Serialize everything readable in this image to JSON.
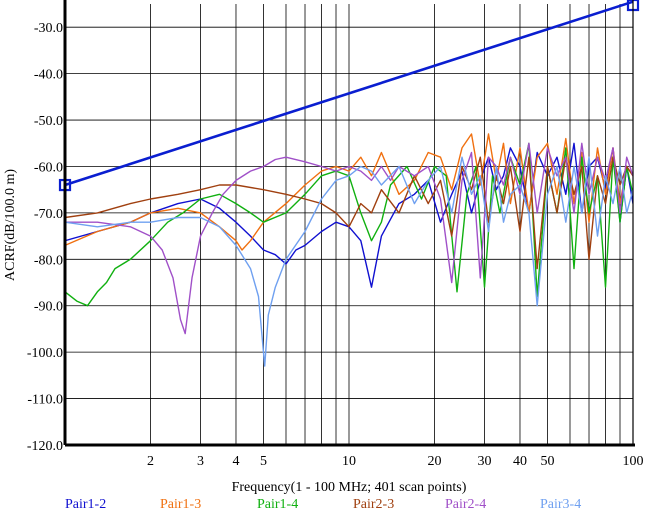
{
  "chart_data": {
    "type": "line",
    "title": "",
    "xlabel": "Frequency(1 - 100 MHz; 401 scan points)",
    "ylabel": "ACRF(dB/100.0 m)",
    "xscale": "log",
    "xlim": [
      1,
      100
    ],
    "ylim": [
      -120,
      -25
    ],
    "grid": true,
    "xticks": [
      2,
      3,
      4,
      5,
      10,
      20,
      30,
      40,
      50,
      100
    ],
    "yticks": [
      -30,
      -40,
      -50,
      -60,
      -70,
      -80,
      -90,
      -100,
      -110,
      -120
    ],
    "xtick_labels": [
      "2",
      "3",
      "4",
      "5",
      "10",
      "20",
      "30",
      "40",
      "50",
      "100"
    ],
    "ytick_labels": [
      "-30.0",
      "-40.0",
      "-50.0",
      "-60.0",
      "-70.0",
      "-80.0",
      "-90.0",
      "-100.0",
      "-110.0",
      "-120.0"
    ],
    "legend_position": "bottom",
    "limit_line": {
      "color": "#0a1ed0",
      "x": [
        1,
        100
      ],
      "y": [
        -64,
        -24.5
      ]
    },
    "series": [
      {
        "name": "Pair1-2",
        "color": "#1010d0",
        "x": [
          1,
          1.3,
          1.7,
          2,
          2.5,
          3,
          3.5,
          4,
          4.5,
          5,
          5.5,
          6,
          6.5,
          7,
          8,
          9,
          10,
          11,
          12,
          13,
          15,
          17,
          19,
          21,
          23,
          25,
          27,
          29,
          31,
          33,
          35,
          37,
          40,
          43,
          46,
          50,
          54,
          58,
          62,
          66,
          70,
          75,
          80,
          85,
          90,
          95,
          100
        ],
        "y": [
          -76,
          -74,
          -72,
          -70,
          -68,
          -67,
          -69,
          -72,
          -75,
          -78,
          -79,
          -81,
          -78,
          -77,
          -74,
          -72,
          -73,
          -76,
          -86,
          -75,
          -68,
          -66,
          -63,
          -72,
          -66,
          -61,
          -70,
          -63,
          -58,
          -65,
          -62,
          -56,
          -60,
          -70,
          -57,
          -62,
          -58,
          -66,
          -55,
          -70,
          -60,
          -58,
          -65,
          -56,
          -72,
          -60,
          -68
        ]
      },
      {
        "name": "Pair1-3",
        "color": "#f07010",
        "x": [
          1,
          1.3,
          1.7,
          2,
          2.5,
          3,
          3.5,
          4,
          4.2,
          4.5,
          5,
          6,
          7,
          8,
          9,
          10,
          11,
          12,
          13,
          15,
          17,
          19,
          21,
          23,
          25,
          27,
          29,
          31,
          33,
          35,
          37,
          40,
          43,
          46,
          50,
          54,
          58,
          62,
          66,
          70,
          75,
          80,
          85,
          90,
          95,
          100
        ],
        "y": [
          -77,
          -74,
          -72,
          -70,
          -69,
          -70,
          -73,
          -76,
          -78,
          -76,
          -72,
          -68,
          -64,
          -61,
          -60,
          -61,
          -58,
          -62,
          -57,
          -66,
          -63,
          -57,
          -58,
          -65,
          -56,
          -53,
          -64,
          -53,
          -63,
          -55,
          -68,
          -56,
          -70,
          -58,
          -55,
          -66,
          -54,
          -68,
          -57,
          -72,
          -56,
          -66,
          -56,
          -68,
          -60,
          -62
        ]
      },
      {
        "name": "Pair1-4",
        "color": "#10b010",
        "x": [
          1,
          1.1,
          1.2,
          1.3,
          1.4,
          1.5,
          1.7,
          2,
          2.3,
          2.6,
          3,
          3.5,
          4,
          4.5,
          5,
          6,
          7,
          8,
          9,
          10,
          11,
          12,
          13,
          14,
          16,
          18,
          20,
          22,
          24,
          26,
          28,
          30,
          32,
          34,
          37,
          40,
          43,
          46,
          50,
          54,
          58,
          62,
          66,
          70,
          75,
          80,
          85,
          90,
          95,
          100
        ],
        "y": [
          -87,
          -89,
          -90,
          -87,
          -85,
          -82,
          -80,
          -76,
          -72,
          -70,
          -67,
          -66,
          -68,
          -70,
          -72,
          -70,
          -66,
          -62,
          -61,
          -62,
          -70,
          -76,
          -72,
          -64,
          -60,
          -67,
          -60,
          -62,
          -87,
          -66,
          -60,
          -86,
          -62,
          -70,
          -58,
          -64,
          -55,
          -88,
          -60,
          -70,
          -56,
          -82,
          -58,
          -70,
          -62,
          -86,
          -58,
          -72,
          -60,
          -66
        ]
      },
      {
        "name": "Pair2-3",
        "color": "#a04010",
        "x": [
          1,
          1.3,
          1.7,
          2,
          2.5,
          3,
          3.5,
          4,
          5,
          6,
          7,
          8,
          9,
          10,
          11,
          12,
          13,
          15,
          17,
          19,
          21,
          23,
          25,
          27,
          29,
          31,
          33,
          35,
          37,
          40,
          43,
          46,
          50,
          54,
          58,
          62,
          66,
          70,
          75,
          80,
          85,
          90,
          95,
          100
        ],
        "y": [
          -71,
          -70,
          -68,
          -67,
          -66,
          -65,
          -64,
          -64,
          -65,
          -66,
          -67,
          -68,
          -70,
          -73,
          -68,
          -70,
          -65,
          -70,
          -62,
          -68,
          -63,
          -75,
          -60,
          -65,
          -58,
          -72,
          -62,
          -68,
          -60,
          -74,
          -58,
          -82,
          -60,
          -70,
          -58,
          -66,
          -60,
          -80,
          -62,
          -68,
          -58,
          -64,
          -60,
          -62
        ]
      },
      {
        "name": "Pair2-4",
        "color": "#a050c8",
        "x": [
          1,
          1.3,
          1.7,
          2,
          2.2,
          2.4,
          2.55,
          2.65,
          2.8,
          3,
          3.3,
          3.6,
          4,
          4.5,
          5,
          5.5,
          6,
          7,
          8,
          9,
          10,
          11,
          12,
          13,
          14,
          15,
          17,
          19,
          21,
          23,
          25,
          27,
          29,
          31,
          33,
          35,
          37,
          40,
          43,
          46,
          50,
          54,
          58,
          62,
          66,
          70,
          75,
          80,
          85,
          90,
          95,
          100
        ],
        "y": [
          -72,
          -72,
          -73,
          -75,
          -78,
          -84,
          -93,
          -96,
          -84,
          -75,
          -70,
          -66,
          -63,
          -61,
          -60,
          -58.5,
          -58,
          -59,
          -60,
          -61,
          -60,
          -61,
          -63,
          -60,
          -63,
          -60,
          -62,
          -60,
          -67,
          -85,
          -63,
          -57,
          -84,
          -58,
          -60,
          -64,
          -58,
          -66,
          -55,
          -70,
          -56,
          -62,
          -58,
          -70,
          -55,
          -66,
          -58,
          -63,
          -56,
          -70,
          -58,
          -62
        ]
      },
      {
        "name": "Pair3-4",
        "color": "#6fa0f0",
        "x": [
          1,
          1.3,
          1.7,
          2,
          2.5,
          3,
          3.5,
          4,
          4.5,
          4.8,
          5.05,
          5.2,
          5.5,
          6,
          7,
          8,
          9,
          10,
          11,
          12,
          13,
          15,
          17,
          19,
          21,
          23,
          25,
          27,
          29,
          31,
          33,
          35,
          37,
          40,
          43,
          46,
          50,
          54,
          58,
          62,
          66,
          70,
          75,
          80,
          85,
          90,
          95,
          100
        ],
        "y": [
          -72,
          -73,
          -72,
          -72,
          -71,
          -71,
          -73,
          -77,
          -82,
          -88,
          -103,
          -92,
          -86,
          -80,
          -74,
          -67,
          -63,
          -62,
          -60,
          -61,
          -64,
          -60,
          -68,
          -63,
          -60,
          -70,
          -58,
          -66,
          -62,
          -74,
          -60,
          -72,
          -66,
          -64,
          -70,
          -90,
          -66,
          -60,
          -72,
          -60,
          -70,
          -58,
          -75,
          -62,
          -68,
          -60,
          -70,
          -65
        ]
      }
    ]
  }
}
